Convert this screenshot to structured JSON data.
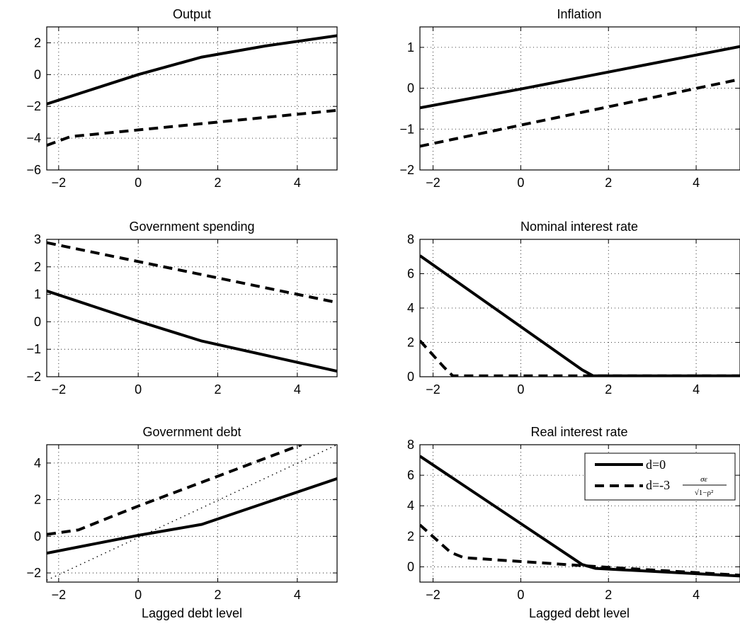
{
  "chart_data": [
    {
      "type": "line",
      "title": "Output",
      "xlabel": "",
      "xlim": [
        -2.3,
        5
      ],
      "ylim": [
        -6,
        3
      ],
      "xticks": [
        -2,
        0,
        2,
        4
      ],
      "xtick_labels": [
        "−2",
        "0",
        "2",
        "4"
      ],
      "yticks": [
        -6,
        -4,
        -2,
        0,
        2
      ],
      "ytick_labels": [
        "−6",
        "−4",
        "−2",
        "0",
        "2"
      ],
      "grid": true,
      "series": [
        {
          "style": "solid",
          "x": [
            -2.3,
            0,
            1.6,
            3.2,
            5
          ],
          "y": [
            -1.85,
            0,
            1.1,
            1.8,
            2.45
          ]
        },
        {
          "style": "dashed",
          "x": [
            -2.3,
            -1.7,
            5
          ],
          "y": [
            -4.45,
            -3.9,
            -2.25
          ]
        }
      ]
    },
    {
      "type": "line",
      "title": "Inflation",
      "xlabel": "",
      "xlim": [
        -2.3,
        5
      ],
      "ylim": [
        -2,
        1.5
      ],
      "xticks": [
        -2,
        0,
        2,
        4
      ],
      "xtick_labels": [
        "−2",
        "0",
        "2",
        "4"
      ],
      "yticks": [
        -2,
        -1,
        0,
        1
      ],
      "ytick_labels": [
        "−2",
        "−1",
        "0",
        "1"
      ],
      "grid": true,
      "series": [
        {
          "style": "solid",
          "x": [
            -2.3,
            0,
            5
          ],
          "y": [
            -0.48,
            -0.02,
            1.02
          ]
        },
        {
          "style": "dashed",
          "x": [
            -2.3,
            5
          ],
          "y": [
            -1.42,
            0.22
          ]
        }
      ]
    },
    {
      "type": "line",
      "title": "Government spending",
      "xlabel": "",
      "xlim": [
        -2.3,
        5
      ],
      "ylim": [
        -2,
        3
      ],
      "xticks": [
        -2,
        0,
        2,
        4
      ],
      "xtick_labels": [
        "−2",
        "0",
        "2",
        "4"
      ],
      "yticks": [
        -2,
        -1,
        0,
        1,
        2,
        3
      ],
      "ytick_labels": [
        "−2",
        "−1",
        "0",
        "1",
        "2",
        "3"
      ],
      "grid": true,
      "series": [
        {
          "style": "solid",
          "x": [
            -2.3,
            0,
            1.6,
            5
          ],
          "y": [
            1.12,
            0.02,
            -0.7,
            -1.8
          ]
        },
        {
          "style": "dashed",
          "x": [
            -2.3,
            5
          ],
          "y": [
            2.88,
            0.7
          ]
        }
      ]
    },
    {
      "type": "line",
      "title": "Nominal interest rate",
      "xlabel": "",
      "xlim": [
        -2.3,
        5
      ],
      "ylim": [
        0,
        8
      ],
      "xticks": [
        -2,
        0,
        2,
        4
      ],
      "xtick_labels": [
        "−2",
        "0",
        "2",
        "4"
      ],
      "yticks": [
        0,
        2,
        4,
        6,
        8
      ],
      "ytick_labels": [
        "0",
        "2",
        "4",
        "6",
        "8"
      ],
      "grid": true,
      "series": [
        {
          "style": "solid",
          "x": [
            -2.3,
            1.4,
            1.65,
            5
          ],
          "y": [
            7.05,
            0.4,
            0.05,
            0.05
          ]
        },
        {
          "style": "dashed",
          "x": [
            -2.3,
            -1.75,
            -1.55,
            5
          ],
          "y": [
            2.1,
            0.55,
            0.05,
            0.05
          ]
        }
      ]
    },
    {
      "type": "line",
      "title": "Government debt",
      "xlabel": "Lagged debt level",
      "xlim": [
        -2.3,
        5
      ],
      "ylim": [
        -2.5,
        5
      ],
      "xticks": [
        -2,
        0,
        2,
        4
      ],
      "xtick_labels": [
        "−2",
        "0",
        "2",
        "4"
      ],
      "yticks": [
        -2,
        0,
        2,
        4
      ],
      "ytick_labels": [
        "−2",
        "0",
        "2",
        "4"
      ],
      "grid": true,
      "series": [
        {
          "style": "solid",
          "x": [
            -2.3,
            0,
            1.6,
            5
          ],
          "y": [
            -0.92,
            0.05,
            0.65,
            3.15
          ]
        },
        {
          "style": "dashed",
          "x": [
            -2.3,
            -1.5,
            -0.7,
            0,
            1.6,
            3,
            4.1
          ],
          "y": [
            0.1,
            0.35,
            1.05,
            1.65,
            2.95,
            4.1,
            5
          ]
        },
        {
          "style": "dotted",
          "x": [
            -2.3,
            5
          ],
          "y": [
            -2.4,
            5
          ]
        }
      ]
    },
    {
      "type": "line",
      "title": "Real interest rate",
      "xlabel": "Lagged debt level",
      "xlim": [
        -2.3,
        5
      ],
      "ylim": [
        -1,
        8
      ],
      "xticks": [
        -2,
        0,
        2,
        4
      ],
      "xtick_labels": [
        "−2",
        "0",
        "2",
        "4"
      ],
      "yticks": [
        0,
        2,
        4,
        6,
        8
      ],
      "ytick_labels": [
        "0",
        "2",
        "4",
        "6",
        "8"
      ],
      "grid": true,
      "legend_placement": "top-right",
      "legend": {
        "solid_label": "d=0",
        "dashed_prefix": "d=-3",
        "dashed_numerator": "σε",
        "dashed_denominator": "√1−ρ²"
      },
      "series": [
        {
          "style": "solid",
          "name": "d=0",
          "x": [
            -2.3,
            1.4,
            1.7,
            5
          ],
          "y": [
            7.25,
            0.15,
            -0.1,
            -0.6
          ]
        },
        {
          "style": "dashed",
          "name": "d=-3σε/√1−ρ²",
          "x": [
            -2.3,
            -1.6,
            -1.3,
            1.8,
            5
          ],
          "y": [
            2.75,
            0.95,
            0.6,
            0.0,
            -0.55
          ]
        }
      ]
    }
  ]
}
